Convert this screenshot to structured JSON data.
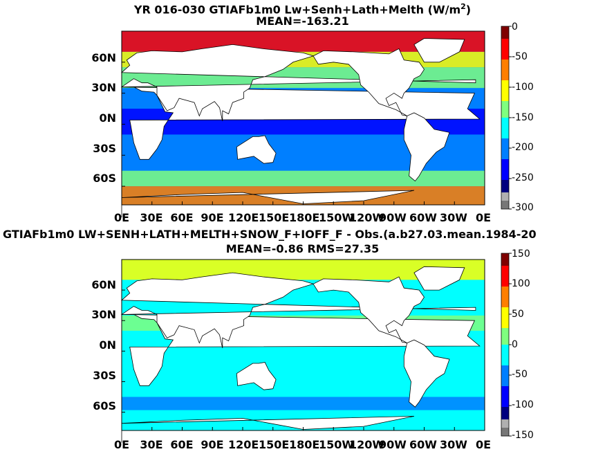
{
  "colors": {
    "colormap": [
      "#00007f",
      "#0000ff",
      "#007fff",
      "#00ffff",
      "#7fff7f",
      "#ffff00",
      "#ff7f00",
      "#ff0000",
      "#7f0000"
    ],
    "land": "#ffffff",
    "under": "#b0b0b0",
    "over": "#777777"
  },
  "panels": [
    {
      "title_line1": "YR 016-030 GTIAFb1m0 Lw+Senh+Lath+Melth (W/m",
      "title_sup": "2",
      "title_close": ")",
      "title_line2": "MEAN=-163.21",
      "colorbar_ticks": [
        "0",
        "-50",
        "-100",
        "-150",
        "-200",
        "-250",
        "-300"
      ]
    },
    {
      "title_line1": "GTIAFb1m0 LW+SENH+LATH+MELTH+SNOW_F+IOFF_F - Obs.(a.b27.03.mean.1984-20",
      "title_line2": "MEAN=-0.86 RMS=27.35",
      "colorbar_ticks": [
        "150",
        "100",
        "50",
        "0",
        "-50",
        "-100",
        "-150"
      ]
    }
  ],
  "axis": {
    "lat_ticks": [
      "60N",
      "30N",
      "0N",
      "30S",
      "60S"
    ],
    "lon_ticks": [
      "0E",
      "30E",
      "60E",
      "90E",
      "120E",
      "150E",
      "180E",
      "150W",
      "120W",
      "90W",
      "60W",
      "30W",
      "0E"
    ]
  },
  "chart_data": [
    {
      "type": "heatmap",
      "title": "YR 016-030 GTIAFb1m0 Lw+Senh+Lath+Melth (W/m2)",
      "subtitle": "MEAN=-163.21",
      "xlabel": "",
      "ylabel": "",
      "xlim": [
        0,
        360
      ],
      "ylim": [
        -78,
        90
      ],
      "colorbar_range": [
        -300,
        0
      ],
      "mean": -163.21
    },
    {
      "type": "heatmap",
      "title": "GTIAFb1m0 LW+SENH+LATH+MELTH+SNOW_F+IOFF_F - Obs.(a.b27.03.mean.1984-20",
      "subtitle": "MEAN=-0.86 RMS=27.35",
      "xlabel": "",
      "ylabel": "",
      "xlim": [
        0,
        360
      ],
      "ylim": [
        -78,
        90
      ],
      "colorbar_range": [
        -150,
        150
      ],
      "mean": -0.86,
      "rms": 27.35
    }
  ]
}
